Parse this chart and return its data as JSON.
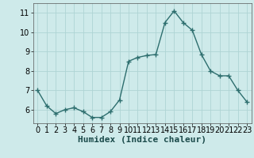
{
  "x": [
    0,
    1,
    2,
    3,
    4,
    5,
    6,
    7,
    8,
    9,
    10,
    11,
    12,
    13,
    14,
    15,
    16,
    17,
    18,
    19,
    20,
    21,
    22,
    23
  ],
  "y": [
    7.0,
    6.2,
    5.8,
    6.0,
    6.1,
    5.9,
    5.6,
    5.6,
    5.9,
    6.5,
    8.5,
    8.7,
    8.8,
    8.85,
    10.5,
    11.1,
    10.5,
    10.1,
    8.85,
    8.0,
    7.75,
    7.75,
    7.0,
    6.4
  ],
  "xlabel": "Humidex (Indice chaleur)",
  "xlim": [
    -0.5,
    23.5
  ],
  "ylim": [
    5.3,
    11.5
  ],
  "yticks": [
    6,
    7,
    8,
    9,
    10,
    11
  ],
  "xticks": [
    0,
    1,
    2,
    3,
    4,
    5,
    6,
    7,
    8,
    9,
    10,
    11,
    12,
    13,
    14,
    15,
    16,
    17,
    18,
    19,
    20,
    21,
    22,
    23
  ],
  "line_color": "#2d6e6e",
  "marker": "+",
  "marker_size": 4,
  "marker_edge_width": 1.0,
  "line_width": 1.0,
  "bg_color": "#ceeaea",
  "grid_color": "#aed4d4",
  "xlabel_fontsize": 8,
  "tick_fontsize": 7
}
